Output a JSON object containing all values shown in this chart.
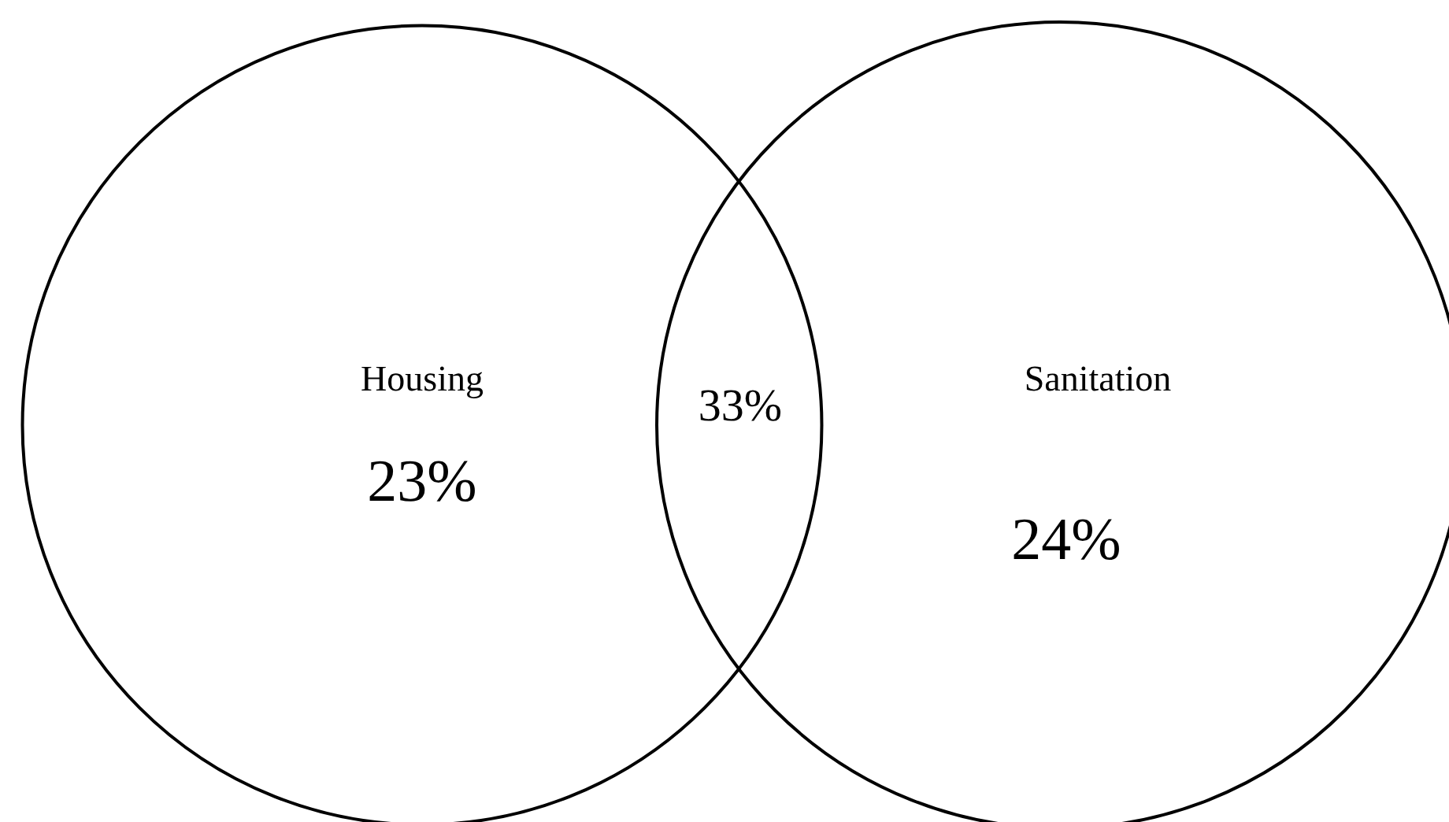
{
  "chart_data": {
    "type": "other",
    "categories": [
      "Housing",
      null,
      "Sanitation"
    ],
    "values": [
      23,
      33,
      24
    ],
    "value_labels": [
      "23%",
      "33%",
      "24%"
    ],
    "color": "#000000"
  }
}
